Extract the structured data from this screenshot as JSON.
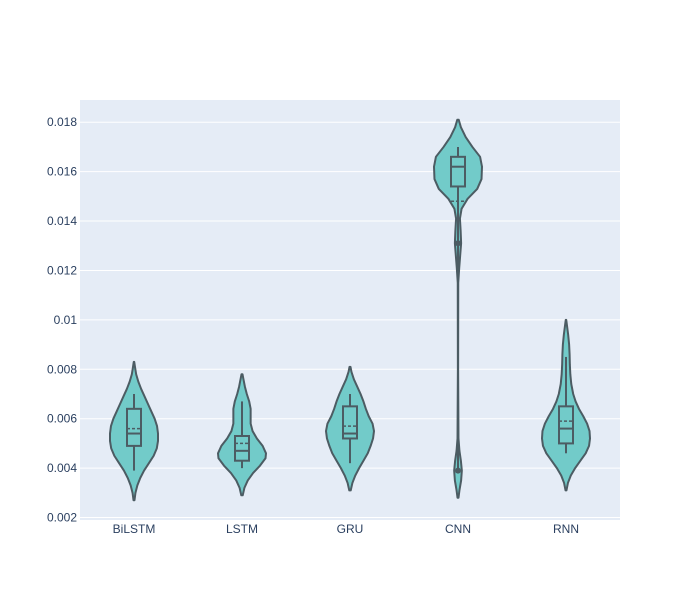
{
  "chart_data": {
    "type": "violin",
    "title": "",
    "xlabel": "",
    "ylabel": "",
    "categories": [
      "BiLSTM",
      "LSTM",
      "GRU",
      "CNN",
      "RNN"
    ],
    "ylim": [
      0.0019,
      0.0189
    ],
    "yticks": [
      0.002,
      0.004,
      0.006,
      0.008,
      0.01,
      0.012,
      0.014,
      0.016,
      0.018
    ],
    "ytick_labels": [
      "0.002",
      "0.004",
      "0.006",
      "0.008",
      "0.01",
      "0.012",
      "0.014",
      "0.016",
      "0.018"
    ],
    "grid": true,
    "legend": "none",
    "colors": {
      "fill": "#72cbc9",
      "line": "#4c5c63",
      "plot_bg": "#e5ecf6",
      "grid": "#ffffff"
    },
    "series": [
      {
        "category": "BiLSTM",
        "min": 0.0039,
        "q1": 0.0049,
        "median": 0.0054,
        "mean": 0.0056,
        "q3": 0.0064,
        "max": 0.007,
        "outliers": [],
        "density": [
          [
            0.0027,
            0.02
          ],
          [
            0.003,
            0.06
          ],
          [
            0.0033,
            0.14
          ],
          [
            0.0036,
            0.26
          ],
          [
            0.0039,
            0.42
          ],
          [
            0.0042,
            0.62
          ],
          [
            0.0045,
            0.82
          ],
          [
            0.0048,
            0.95
          ],
          [
            0.0051,
            1.0
          ],
          [
            0.0054,
            1.0
          ],
          [
            0.0057,
            0.96
          ],
          [
            0.006,
            0.86
          ],
          [
            0.0063,
            0.72
          ],
          [
            0.0066,
            0.58
          ],
          [
            0.0069,
            0.44
          ],
          [
            0.0072,
            0.3
          ],
          [
            0.0075,
            0.18
          ],
          [
            0.0078,
            0.09
          ],
          [
            0.0081,
            0.04
          ],
          [
            0.0083,
            0.01
          ]
        ]
      },
      {
        "category": "LSTM",
        "min": 0.004,
        "q1": 0.0043,
        "median": 0.0047,
        "mean": 0.005,
        "q3": 0.0053,
        "max": 0.0067,
        "outliers": [],
        "density": [
          [
            0.0029,
            0.03
          ],
          [
            0.0032,
            0.1
          ],
          [
            0.0035,
            0.24
          ],
          [
            0.0038,
            0.46
          ],
          [
            0.0041,
            0.75
          ],
          [
            0.0044,
            0.98
          ],
          [
            0.0046,
            1.0
          ],
          [
            0.0049,
            0.86
          ],
          [
            0.0052,
            0.62
          ],
          [
            0.0055,
            0.44
          ],
          [
            0.0058,
            0.36
          ],
          [
            0.0061,
            0.36
          ],
          [
            0.0064,
            0.36
          ],
          [
            0.0067,
            0.3
          ],
          [
            0.007,
            0.2
          ],
          [
            0.0073,
            0.12
          ],
          [
            0.0076,
            0.06
          ],
          [
            0.0078,
            0.02
          ]
        ]
      },
      {
        "category": "GRU",
        "min": 0.0042,
        "q1": 0.0052,
        "median": 0.0054,
        "mean": 0.0057,
        "q3": 0.0065,
        "max": 0.007,
        "outliers": [],
        "density": [
          [
            0.0031,
            0.03
          ],
          [
            0.0034,
            0.1
          ],
          [
            0.0037,
            0.22
          ],
          [
            0.004,
            0.38
          ],
          [
            0.0043,
            0.56
          ],
          [
            0.0046,
            0.74
          ],
          [
            0.0049,
            0.86
          ],
          [
            0.0052,
            0.96
          ],
          [
            0.0055,
            1.0
          ],
          [
            0.0058,
            0.94
          ],
          [
            0.0061,
            0.78
          ],
          [
            0.0064,
            0.66
          ],
          [
            0.0067,
            0.56
          ],
          [
            0.007,
            0.44
          ],
          [
            0.0073,
            0.3
          ],
          [
            0.0076,
            0.16
          ],
          [
            0.0079,
            0.06
          ],
          [
            0.0081,
            0.02
          ]
        ]
      },
      {
        "category": "CNN",
        "min": 0.0039,
        "q1": 0.0154,
        "median": 0.0162,
        "mean": 0.0148,
        "q3": 0.0166,
        "max": 0.017,
        "outliers": [
          0.0039,
          0.0131
        ],
        "density": [
          [
            0.0028,
            0.02
          ],
          [
            0.0031,
            0.06
          ],
          [
            0.0035,
            0.13
          ],
          [
            0.0039,
            0.16
          ],
          [
            0.0043,
            0.12
          ],
          [
            0.0047,
            0.06
          ],
          [
            0.0052,
            0.02
          ],
          [
            0.008,
            0.005
          ],
          [
            0.0115,
            0.01
          ],
          [
            0.0121,
            0.05
          ],
          [
            0.0126,
            0.09
          ],
          [
            0.0131,
            0.13
          ],
          [
            0.0136,
            0.11
          ],
          [
            0.0141,
            0.08
          ],
          [
            0.0145,
            0.15
          ],
          [
            0.0149,
            0.4
          ],
          [
            0.0153,
            0.8
          ],
          [
            0.0157,
            0.98
          ],
          [
            0.0162,
            1.0
          ],
          [
            0.0166,
            0.92
          ],
          [
            0.017,
            0.6
          ],
          [
            0.0174,
            0.32
          ],
          [
            0.0178,
            0.12
          ],
          [
            0.0181,
            0.03
          ]
        ]
      },
      {
        "category": "RNN",
        "min": 0.0046,
        "q1": 0.005,
        "median": 0.0056,
        "mean": 0.0059,
        "q3": 0.0065,
        "max": 0.0085,
        "outliers": [],
        "density": [
          [
            0.0031,
            0.02
          ],
          [
            0.0034,
            0.08
          ],
          [
            0.0037,
            0.2
          ],
          [
            0.004,
            0.38
          ],
          [
            0.0043,
            0.6
          ],
          [
            0.0046,
            0.82
          ],
          [
            0.0049,
            0.96
          ],
          [
            0.0052,
            1.0
          ],
          [
            0.0055,
            0.98
          ],
          [
            0.0058,
            0.88
          ],
          [
            0.0061,
            0.72
          ],
          [
            0.0064,
            0.54
          ],
          [
            0.0067,
            0.4
          ],
          [
            0.007,
            0.3
          ],
          [
            0.0074,
            0.22
          ],
          [
            0.0078,
            0.18
          ],
          [
            0.0082,
            0.16
          ],
          [
            0.0086,
            0.15
          ],
          [
            0.009,
            0.13
          ],
          [
            0.0094,
            0.09
          ],
          [
            0.0097,
            0.05
          ],
          [
            0.01,
            0.01
          ]
        ]
      }
    ]
  }
}
